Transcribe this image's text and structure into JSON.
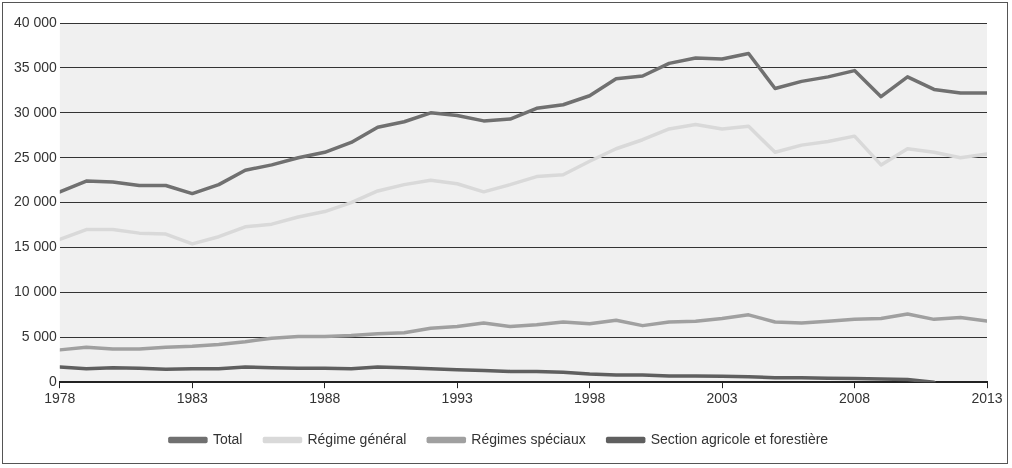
{
  "chart_data": {
    "type": "line",
    "x": [
      1978,
      1979,
      1980,
      1981,
      1982,
      1983,
      1984,
      1985,
      1986,
      1987,
      1988,
      1989,
      1990,
      1991,
      1992,
      1993,
      1994,
      1995,
      1996,
      1997,
      1998,
      1999,
      2000,
      2001,
      2002,
      2003,
      2004,
      2005,
      2006,
      2007,
      2008,
      2009,
      2010,
      2011,
      2012,
      2013
    ],
    "series": [
      {
        "name": "Total",
        "color": "#707070",
        "values": [
          21200,
          22400,
          22300,
          21900,
          21900,
          21000,
          22000,
          23600,
          24200,
          25000,
          25600,
          26700,
          28400,
          29000,
          30000,
          29700,
          29100,
          29300,
          30500,
          30900,
          31900,
          33800,
          34100,
          35500,
          36100,
          36000,
          36600,
          32700,
          33500,
          34000,
          34700,
          31800,
          34000,
          32600,
          32200,
          32200
        ]
      },
      {
        "name": "Régime général",
        "color": "#d9d9d9",
        "values": [
          15900,
          17000,
          17000,
          16600,
          16500,
          15400,
          16200,
          17300,
          17600,
          18400,
          19000,
          20000,
          21300,
          22000,
          22500,
          22100,
          21200,
          22000,
          22900,
          23100,
          24600,
          26000,
          27000,
          28200,
          28700,
          28200,
          28500,
          25600,
          26400,
          26800,
          27400,
          24200,
          26000,
          25600,
          25000,
          25400
        ]
      },
      {
        "name": "Régimes spéciaux",
        "color": "#a0a0a0",
        "values": [
          3600,
          3900,
          3700,
          3700,
          3900,
          4000,
          4200,
          4500,
          4900,
          5100,
          5100,
          5200,
          5400,
          5500,
          6000,
          6200,
          6600,
          6200,
          6400,
          6700,
          6500,
          6900,
          6300,
          6700,
          6800,
          7100,
          7500,
          6700,
          6600,
          6800,
          7000,
          7100,
          7600,
          7000,
          7200,
          6800
        ]
      },
      {
        "name": "Section agricole et forestière",
        "color": "#5f5f5f",
        "values": [
          1700,
          1500,
          1600,
          1550,
          1450,
          1500,
          1500,
          1700,
          1600,
          1550,
          1550,
          1500,
          1700,
          1600,
          1500,
          1400,
          1300,
          1200,
          1200,
          1100,
          900,
          800,
          800,
          700,
          700,
          650,
          600,
          500,
          500,
          450,
          400,
          350,
          300,
          0,
          null,
          null
        ]
      }
    ],
    "xlim": [
      1978,
      2013
    ],
    "xticks": [
      1978,
      1983,
      1988,
      1993,
      1998,
      2003,
      2008,
      2013
    ],
    "ylim": [
      0,
      40000
    ],
    "yticks": [
      0,
      {
        "value": 5000,
        "label": "5 000"
      },
      {
        "value": 10000,
        "label": "10 000"
      },
      {
        "value": 15000,
        "label": "15 000"
      },
      {
        "value": 20000,
        "label": "20 000"
      },
      {
        "value": 25000,
        "label": "25 000"
      },
      {
        "value": 30000,
        "label": "30 000"
      },
      {
        "value": 35000,
        "label": "35 000"
      },
      {
        "value": 40000,
        "label": "40 000"
      }
    ],
    "grid": "y",
    "legend": "bottom",
    "marker": "none",
    "line_style": "solid"
  }
}
